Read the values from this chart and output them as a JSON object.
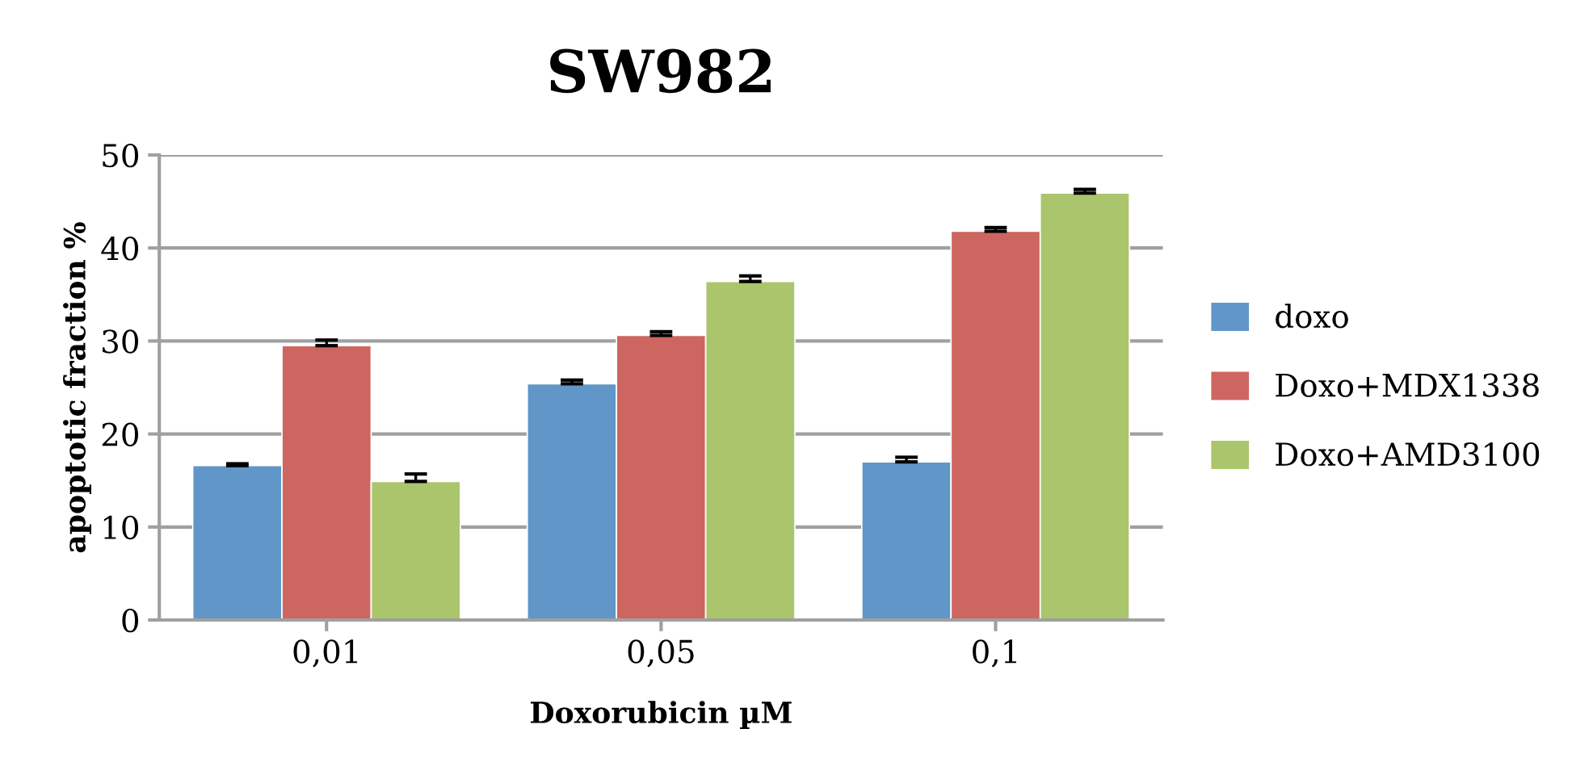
{
  "chart_data": {
    "type": "bar",
    "title": "SW982",
    "xlabel": "Doxorubicin µM",
    "ylabel": "apoptotic fraction %",
    "categories": [
      "0,01",
      "0,05",
      "0,1"
    ],
    "series": [
      {
        "name": "doxo",
        "color": "#6096c8",
        "values": [
          16.6,
          25.4,
          17.0
        ],
        "errors": [
          [
            16.6,
            16.8
          ],
          [
            25.4,
            25.8
          ],
          [
            17.0,
            17.5
          ]
        ]
      },
      {
        "name": "Doxo+MDX1338",
        "color": "#cd6660",
        "values": [
          29.5,
          30.6,
          41.8
        ],
        "errors": [
          [
            29.5,
            30.1
          ],
          [
            30.6,
            31.0
          ],
          [
            41.8,
            42.2
          ]
        ]
      },
      {
        "name": "Doxo+AMD3100",
        "color": "#abc56c",
        "values": [
          14.9,
          36.4,
          45.9
        ],
        "errors": [
          [
            14.9,
            15.7
          ],
          [
            36.4,
            37.0
          ],
          [
            45.9,
            46.3
          ]
        ]
      }
    ],
    "ylim": [
      0,
      50
    ],
    "yticks": [
      0,
      10,
      20,
      30,
      40,
      50
    ],
    "grid": "y",
    "legend": "right"
  }
}
